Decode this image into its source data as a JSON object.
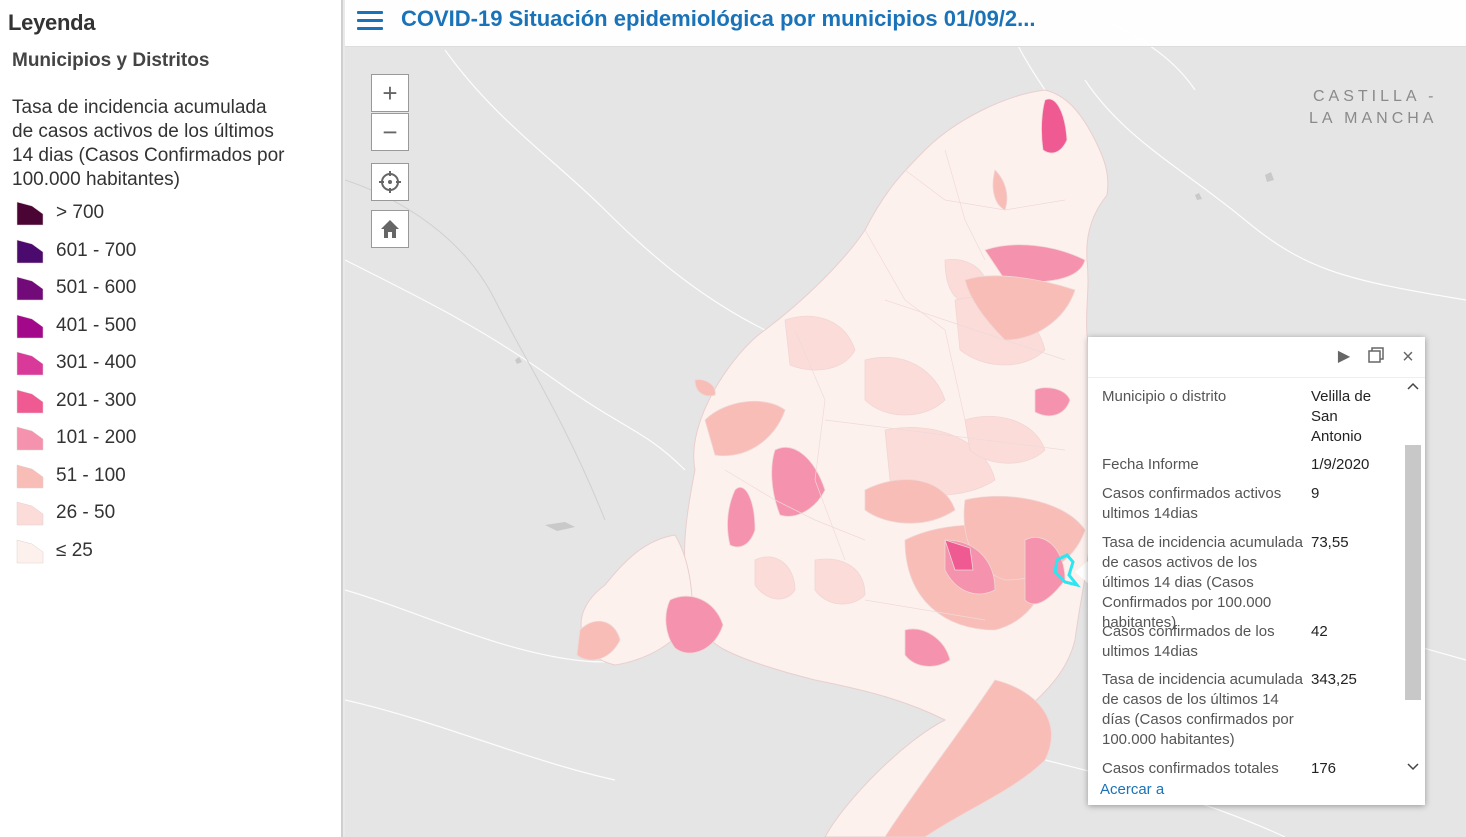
{
  "legend": {
    "title": "Leyenda",
    "layer_title": "Municipios y Distritos",
    "field_title": "Tasa de incidencia acumulada de casos activos de los últimos 14 dias (Casos Confirmados por 100.000 habitantes)",
    "items": [
      {
        "label": "> 700",
        "color": "#4a0535"
      },
      {
        "label": "601 - 700",
        "color": "#4b0a6e"
      },
      {
        "label": "501 - 600",
        "color": "#730a7a"
      },
      {
        "label": "401 - 500",
        "color": "#a3088a"
      },
      {
        "label": "301 - 400",
        "color": "#d93a9a"
      },
      {
        "label": "201 - 300",
        "color": "#ef5a92"
      },
      {
        "label": "101 - 200",
        "color": "#f592ad"
      },
      {
        "label": "51 - 100",
        "color": "#f8bdb6"
      },
      {
        "label": "26 - 50",
        "color": "#fbdcd9"
      },
      {
        "label": "≤ 25",
        "color": "#fdf1ee"
      }
    ]
  },
  "header": {
    "title": "COVID-19 Situación epidemiológica por municipios 01/09/2..."
  },
  "map": {
    "controls": {
      "zoom_in": "+",
      "zoom_out": "−"
    },
    "region_label_line1": "CASTILLA -",
    "region_label_line2": "LA MANCHA",
    "highlight_color": "#2ee6f0"
  },
  "popup": {
    "rows": [
      {
        "field": "Municipio o distrito",
        "value": "Velilla de San Antonio"
      },
      {
        "field": "Fecha Informe",
        "value": "1/9/2020"
      },
      {
        "field": "Casos confirmados activos ultimos 14dias",
        "value": "9"
      },
      {
        "field": "Tasa de incidencia acumulada de casos activos de los últimos 14 dias (Casos Confirmados por 100.000 habitantes)",
        "value": "73,55"
      },
      {
        "field": "Casos confirmados de los ultimos 14dias",
        "value": "42"
      },
      {
        "field": "Tasa de incidencia acumulada de casos de los últimos 14 días (Casos confirmados por 100.000 habitantes)",
        "value": "343,25"
      },
      {
        "field": "Casos confirmados totales",
        "value": "176"
      }
    ],
    "zoom_link": "Acercar a"
  }
}
